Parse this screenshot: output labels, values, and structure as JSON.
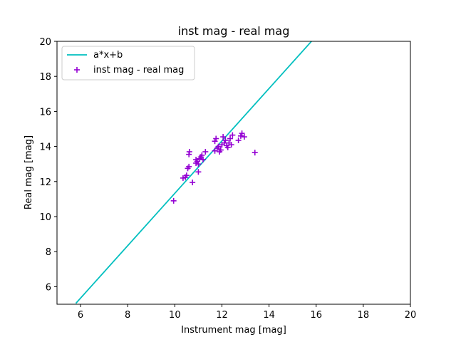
{
  "chart_data": {
    "type": "scatter",
    "title": "inst mag - real mag",
    "xlabel": "Instrument mag [mag]",
    "ylabel": "Real mag [mag]",
    "xlim": [
      5,
      20
    ],
    "ylim": [
      5,
      20
    ],
    "xticks": [
      6,
      8,
      10,
      12,
      14,
      16,
      18,
      20
    ],
    "yticks": [
      6,
      8,
      10,
      12,
      14,
      16,
      18,
      20
    ],
    "grid": false,
    "legend_position": "top-left",
    "series": [
      {
        "name": "a*x+b",
        "type": "line",
        "color": "#00bfbf",
        "x": [
          5.8,
          15.8
        ],
        "y": [
          5.05,
          20.0
        ]
      },
      {
        "name": "inst mag - real mag",
        "type": "scatter",
        "marker": "plus",
        "color": "#9400d3",
        "points": [
          [
            9.95,
            10.9
          ],
          [
            10.35,
            12.2
          ],
          [
            10.45,
            12.25
          ],
          [
            10.5,
            12.35
          ],
          [
            10.55,
            12.75
          ],
          [
            10.6,
            12.85
          ],
          [
            10.6,
            13.55
          ],
          [
            10.62,
            13.7
          ],
          [
            10.75,
            11.95
          ],
          [
            10.9,
            13.05
          ],
          [
            10.9,
            13.25
          ],
          [
            10.95,
            13.15
          ],
          [
            11.0,
            12.55
          ],
          [
            11.0,
            13.0
          ],
          [
            11.05,
            13.3
          ],
          [
            11.1,
            13.4
          ],
          [
            11.15,
            13.5
          ],
          [
            11.2,
            13.25
          ],
          [
            11.3,
            13.7
          ],
          [
            11.7,
            13.75
          ],
          [
            11.7,
            14.3
          ],
          [
            11.75,
            14.45
          ],
          [
            11.8,
            13.9
          ],
          [
            11.85,
            14.0
          ],
          [
            11.9,
            13.7
          ],
          [
            11.95,
            13.8
          ],
          [
            12.0,
            14.1
          ],
          [
            12.05,
            14.55
          ],
          [
            12.1,
            14.2
          ],
          [
            12.15,
            14.35
          ],
          [
            12.2,
            14.05
          ],
          [
            12.25,
            13.95
          ],
          [
            12.3,
            14.2
          ],
          [
            12.35,
            14.45
          ],
          [
            12.4,
            14.1
          ],
          [
            12.45,
            14.65
          ],
          [
            12.7,
            14.35
          ],
          [
            12.8,
            14.6
          ],
          [
            12.85,
            14.75
          ],
          [
            12.95,
            14.55
          ],
          [
            13.4,
            13.65
          ]
        ]
      }
    ]
  }
}
